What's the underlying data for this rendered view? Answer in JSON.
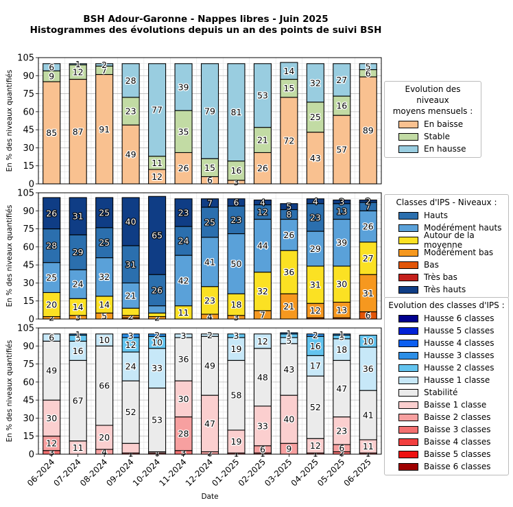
{
  "title_line1": "BSH Adour-Garonne - Nappes libres - Juin 2025",
  "title_line2": "Histogrammes des évolutions depuis un an des points de suivi BSH",
  "chart_data": [
    {
      "type": "bar",
      "stacked": true,
      "categories": [
        "06-2024",
        "07-2024",
        "08-2024",
        "09-2024",
        "10-2024",
        "11-2024",
        "12-2024",
        "01-2025",
        "02-2025",
        "03-2025",
        "04-2025",
        "05-2025",
        "06-2025"
      ],
      "ylabel": "En % des niveaux quantifiés",
      "xlabel": "",
      "ylim": [
        0,
        105
      ],
      "yticks": [
        0,
        15,
        30,
        45,
        60,
        75,
        90,
        105
      ],
      "grid": true,
      "legend_title": "Evolution des niveaux moyens mensuels :",
      "legend_title_lines": [
        "Evolution des niveaux",
        "moyens mensuels :"
      ],
      "legend_placement": "right",
      "series": [
        {
          "name": "En baisse",
          "color": "#f9c190",
          "values": [
            85,
            87,
            91,
            49,
            12,
            26,
            6,
            3,
            26,
            72,
            43,
            57,
            89
          ],
          "labels": [
            "85",
            "87",
            "91",
            "49",
            "12",
            "26",
            "6",
            "3",
            "26",
            "72",
            "43",
            "57",
            "89"
          ]
        },
        {
          "name": "Stable",
          "color": "#c2dba4",
          "values": [
            9,
            12,
            7,
            23,
            11,
            35,
            15,
            16,
            21,
            15,
            25,
            16,
            6
          ],
          "labels": [
            "9",
            "12",
            "7",
            "23",
            "11",
            "35",
            "15",
            "16",
            "21",
            "15",
            "25",
            "16",
            "6"
          ]
        },
        {
          "name": "En hausse",
          "color": "#99cde0",
          "values": [
            6,
            1,
            2,
            28,
            77,
            39,
            79,
            81,
            53,
            14,
            32,
            27,
            5
          ],
          "labels": [
            "6",
            "1",
            "2",
            "28",
            "77",
            "39",
            "79",
            "81",
            "53",
            "14",
            "32",
            "27",
            "5"
          ]
        }
      ]
    },
    {
      "type": "bar",
      "stacked": true,
      "categories": [
        "06-2024",
        "07-2024",
        "08-2024",
        "09-2024",
        "10-2024",
        "11-2024",
        "12-2024",
        "01-2025",
        "02-2025",
        "03-2025",
        "04-2025",
        "05-2025",
        "06-2025"
      ],
      "ylabel": "En % des niveaux quantifiés",
      "xlabel": "",
      "ylim": [
        0,
        105
      ],
      "yticks": [
        0,
        15,
        30,
        45,
        60,
        75,
        90,
        105
      ],
      "grid": true,
      "legend_title": "Classes d'IPS - Niveaux :",
      "legend_title_lines": [
        "Classes d'IPS - Niveaux :"
      ],
      "legend_placement": "right",
      "legend_order": [
        5,
        4,
        3,
        2,
        1,
        0,
        6
      ],
      "series": [
        {
          "name": "Très bas",
          "color": "#c4201c",
          "values": [
            0,
            0,
            0,
            0,
            0,
            0,
            0,
            0,
            0,
            0,
            0,
            0,
            0
          ],
          "labels": [
            "",
            "",
            "",
            "",
            "",
            "",
            "",
            "",
            "",
            "",
            "",
            "",
            ""
          ]
        },
        {
          "name": "Bas",
          "color": "#e25508",
          "values": [
            0,
            0,
            0,
            1,
            0,
            0,
            0,
            0,
            0,
            0,
            1,
            1,
            6
          ],
          "labels": [
            "",
            "",
            "",
            "",
            "",
            "",
            "",
            "",
            "",
            "",
            "",
            "",
            "6"
          ]
        },
        {
          "name": "Modérément bas",
          "color": "#f6981f",
          "values": [
            2,
            3,
            5,
            2,
            2,
            0,
            4,
            3,
            7,
            21,
            12,
            13,
            31
          ],
          "labels": [
            "2",
            "3",
            "5",
            "2",
            "2",
            "",
            "4",
            "3",
            "7",
            "21",
            "12",
            "13",
            "31"
          ]
        },
        {
          "name": "Autour de la moyenne",
          "color": "#fbe123",
          "values": [
            20,
            14,
            14,
            6,
            3,
            11,
            23,
            18,
            32,
            36,
            31,
            30,
            27
          ],
          "labels": [
            "20",
            "14",
            "14",
            "",
            "",
            "11",
            "23",
            "18",
            "32",
            "36",
            "31",
            "30",
            "27"
          ]
        },
        {
          "name": "Modérément hauts",
          "color": "#5aa1d9",
          "values": [
            25,
            24,
            32,
            21,
            6,
            42,
            41,
            50,
            44,
            26,
            29,
            39,
            26
          ],
          "labels": [
            "25",
            "24",
            "32",
            "21",
            "",
            "42",
            "41",
            "50",
            "44",
            "26",
            "29",
            "39",
            "26"
          ]
        },
        {
          "name": "Hauts",
          "color": "#2b6fae",
          "values": [
            28,
            29,
            25,
            31,
            26,
            24,
            25,
            23,
            12,
            8,
            23,
            13,
            7
          ],
          "labels": [
            "28",
            "29",
            "25",
            "31",
            "26",
            "24",
            "25",
            "23",
            "12",
            "8",
            "23",
            "13",
            "7"
          ]
        },
        {
          "name": "Très hauts",
          "color": "#0f3d85",
          "values": [
            26,
            31,
            25,
            40,
            65,
            23,
            7,
            6,
            4,
            5,
            4,
            3,
            2
          ],
          "labels": [
            "26",
            "31",
            "25",
            "40",
            "65",
            "23",
            "7",
            "6",
            "4",
            "5",
            "4",
            "3",
            "2"
          ]
        }
      ]
    },
    {
      "type": "bar",
      "stacked": true,
      "categories": [
        "06-2024",
        "07-2024",
        "08-2024",
        "09-2024",
        "10-2024",
        "11-2024",
        "12-2024",
        "01-2025",
        "02-2025",
        "03-2025",
        "04-2025",
        "05-2025",
        "06-2025"
      ],
      "ylabel": "En % des niveaux quantifiés",
      "xlabel": "Date",
      "ylim": [
        0,
        105
      ],
      "yticks": [
        0,
        15,
        30,
        45,
        60,
        75,
        90,
        105
      ],
      "grid": true,
      "legend_title": "Evolution des classes d'IPS :",
      "legend_title_lines": [
        "Evolution des classes d'IPS :"
      ],
      "legend_placement": "right",
      "legend_order": [
        12,
        11,
        10,
        9,
        8,
        7,
        6,
        5,
        4,
        3,
        2,
        1,
        0
      ],
      "series": [
        {
          "name": "Baisse 6 classes",
          "color": "#9e0000",
          "values": [
            0,
            0,
            0,
            0,
            0,
            0,
            0,
            0,
            0,
            0,
            0,
            0,
            0
          ],
          "labels": [
            "",
            "",
            "",
            "",
            "",
            "",
            "",
            "",
            "",
            "",
            "",
            "",
            ""
          ]
        },
        {
          "name": "Baisse 5 classes",
          "color": "#ee1111",
          "values": [
            0,
            0,
            0,
            0,
            0,
            0,
            0,
            0,
            0,
            0,
            0,
            0,
            0
          ],
          "labels": [
            "",
            "",
            "",
            "",
            "",
            "",
            "",
            "",
            "",
            "",
            "",
            "",
            ""
          ]
        },
        {
          "name": "Baisse 4 classes",
          "color": "#f23f3f",
          "values": [
            0,
            0,
            0,
            0,
            0,
            0,
            0,
            0,
            0,
            0,
            0,
            0,
            0
          ],
          "labels": [
            "",
            "",
            "",
            "",
            "",
            "",
            "",
            "",
            "",
            "",
            "",
            "",
            ""
          ]
        },
        {
          "name": "Baisse 3 classes",
          "color": "#f37070",
          "values": [
            3,
            0,
            0,
            1,
            1,
            3,
            0,
            1,
            1,
            0,
            1,
            2,
            1
          ],
          "labels": [
            "3",
            "",
            "",
            "1",
            "1",
            "3",
            "",
            "1",
            "1",
            "",
            "1",
            "2",
            "1"
          ]
        },
        {
          "name": "Baisse 2 classes",
          "color": "#f7a0a0",
          "values": [
            12,
            0,
            4,
            0,
            0,
            28,
            2,
            0,
            6,
            9,
            0,
            6,
            0
          ],
          "labels": [
            "12",
            "",
            "4",
            "",
            "",
            "28",
            "2",
            "",
            "6",
            "9",
            "",
            "6",
            ""
          ]
        },
        {
          "name": "Baisse 1 classe",
          "color": "#fbcfcf",
          "values": [
            30,
            11,
            20,
            8,
            1,
            30,
            47,
            19,
            33,
            40,
            12,
            23,
            11
          ],
          "labels": [
            "30",
            "11",
            "20",
            "",
            "1",
            "30",
            "47",
            "19",
            "33",
            "40",
            "12",
            "23",
            "11"
          ]
        },
        {
          "name": "Stabilité",
          "color": "#ebebeb",
          "values": [
            49,
            67,
            66,
            52,
            53,
            36,
            49,
            58,
            48,
            43,
            52,
            47,
            41
          ],
          "labels": [
            "49",
            "67",
            "66",
            "52",
            "53",
            "36",
            "49",
            "58",
            "48",
            "43",
            "52",
            "47",
            "41"
          ]
        },
        {
          "name": "Hausse 1 classe",
          "color": "#c7e8f8",
          "values": [
            6,
            16,
            10,
            24,
            33,
            3,
            2,
            19,
            12,
            5,
            17,
            18,
            36
          ],
          "labels": [
            "6",
            "16",
            "10",
            "24",
            "33",
            "3",
            "2",
            "19",
            "12",
            "5",
            "17",
            "18",
            "36"
          ]
        },
        {
          "name": "Hausse 2 classes",
          "color": "#63c4ef",
          "values": [
            0,
            5,
            0,
            12,
            10,
            0,
            0,
            3,
            0,
            3,
            16,
            3,
            10
          ],
          "labels": [
            "",
            "5",
            "",
            "12",
            "10",
            "",
            "",
            "3",
            "",
            "3",
            "16",
            "3",
            "10"
          ]
        },
        {
          "name": "Hausse 3 classes",
          "color": "#2c8ee6",
          "values": [
            0,
            1,
            0,
            3,
            2,
            0,
            0,
            0,
            0,
            1,
            2,
            1,
            0
          ],
          "labels": [
            "",
            "1",
            "",
            "3",
            "2",
            "",
            "",
            "",
            "",
            "1",
            "2",
            "1",
            ""
          ]
        },
        {
          "name": "Hausse 4 classes",
          "color": "#0c5ff0",
          "values": [
            0,
            0,
            0,
            0,
            0,
            0,
            0,
            0,
            0,
            0,
            0,
            0,
            0
          ],
          "labels": [
            "",
            "",
            "",
            "",
            "",
            "",
            "",
            "",
            "",
            "",
            "",
            "",
            ""
          ]
        },
        {
          "name": "Hausse 5 classes",
          "color": "#0222d6",
          "values": [
            0,
            0,
            0,
            0,
            0,
            0,
            0,
            0,
            0,
            0,
            0,
            0,
            0
          ],
          "labels": [
            "",
            "",
            "",
            "",
            "",
            "",
            "",
            "",
            "",
            "",
            "",
            "",
            ""
          ]
        },
        {
          "name": "Hausse 6 classes",
          "color": "#00008e",
          "values": [
            0,
            0,
            0,
            0,
            0,
            0,
            0,
            0,
            0,
            0,
            0,
            0,
            0
          ],
          "labels": [
            "",
            "",
            "",
            "",
            "",
            "",
            "",
            "",
            "",
            "",
            "",
            "",
            ""
          ]
        }
      ]
    }
  ]
}
